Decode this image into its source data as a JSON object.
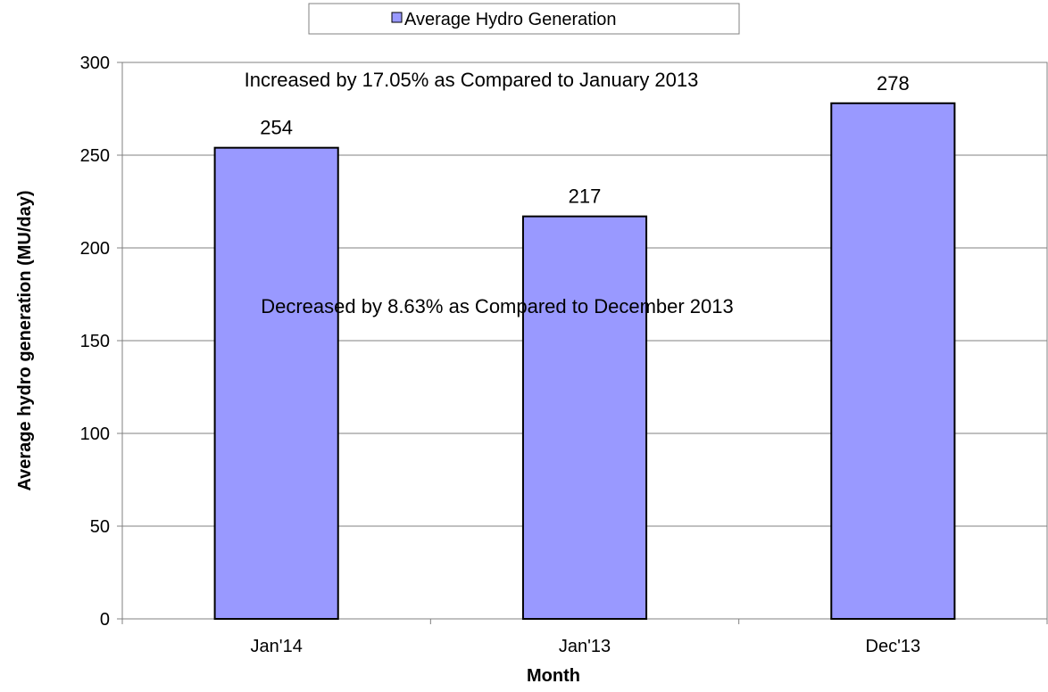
{
  "chart_data": {
    "type": "bar",
    "categories": [
      "Jan'14",
      "Jan'13",
      "Dec'13"
    ],
    "series": [
      {
        "name": "Average Hydro Generation",
        "values": [
          254,
          217,
          278
        ],
        "color": "#9999ff"
      }
    ],
    "data_labels": [
      "254",
      "217",
      "278"
    ],
    "xlabel": "Month",
    "ylabel": "Average hydro generation (MU/day)",
    "ylim": [
      0,
      300
    ],
    "yticks": [
      0,
      50,
      100,
      150,
      200,
      250,
      300
    ],
    "grid": true,
    "legend_position": "top",
    "annotations": [
      "Increased by 17.05% as Compared to January 2013",
      "Decreased by 8.63% as Compared to December 2013"
    ]
  }
}
